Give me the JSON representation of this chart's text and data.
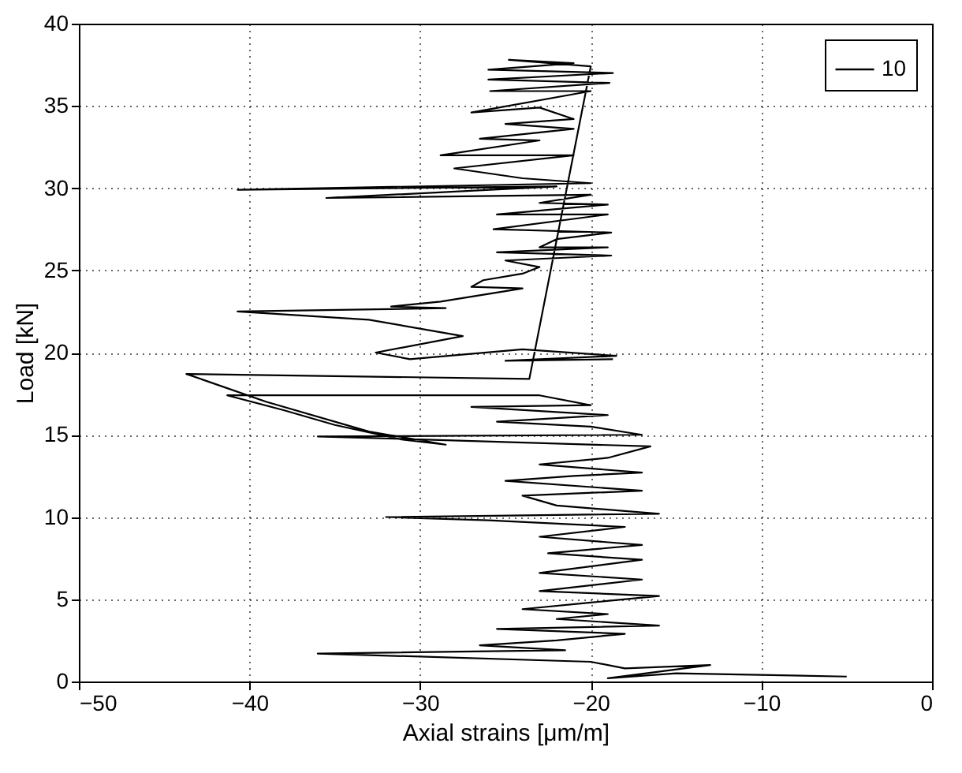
{
  "chart_data": {
    "type": "line",
    "xlabel": "Axial strains [μm/m]",
    "ylabel": "Load [kN]",
    "xlim": [
      -50,
      0
    ],
    "xticks": [
      -50,
      -40,
      -30,
      -20,
      -10,
      0
    ],
    "ylim": [
      0,
      40
    ],
    "yticks": [
      0,
      5,
      10,
      15,
      20,
      25,
      30,
      35,
      40
    ],
    "grid": true,
    "legend": "top right",
    "marker": "none",
    "line_style": "solid",
    "x": [
      -5.0,
      -15,
      -19,
      -13,
      -18,
      -20,
      -36,
      -21.5,
      -26.5,
      -22,
      -18,
      -25.5,
      -16,
      -22,
      -19,
      -24,
      -20,
      -16,
      -23,
      -17,
      -23,
      -17,
      -22.5,
      -17,
      -23,
      -18,
      -26,
      -32,
      -16,
      -22,
      -24,
      -17,
      -25,
      -21,
      -17,
      -23,
      -19,
      -16.5,
      -36,
      -17,
      -20,
      -25.5,
      -19,
      -27,
      -20,
      -23,
      -41.3,
      -38,
      -35,
      -31,
      -28.5,
      -33,
      -39,
      -43.7,
      -23.6,
      -20,
      -24.8,
      -21,
      -26,
      -18.7,
      -26,
      -18.9,
      -25.9,
      -20,
      -27,
      -23,
      -21,
      -25,
      -21,
      -26.5,
      -23,
      -28.8,
      -21,
      -28,
      -24,
      -20,
      -40.7,
      -22,
      -35.5,
      -20,
      -23,
      -19,
      -25.5,
      -19,
      -25.7,
      -18.8,
      -22,
      -23,
      -19,
      -25.5,
      -18.8,
      -25,
      -23,
      -24,
      -26.3,
      -27,
      -24,
      -28.8,
      -31.7,
      -28.5,
      -40.7,
      -33,
      -27.5,
      -32.6,
      -30.6,
      -24,
      -18.5,
      -25,
      -18.7
    ],
    "series": [
      {
        "name": "10",
        "color": "#000000",
        "values": [
          0.3,
          0.5,
          0.2,
          1.0,
          0.8,
          1.2,
          1.7,
          1.9,
          2.2,
          2.5,
          2.9,
          3.2,
          3.4,
          3.8,
          4.1,
          4.4,
          4.8,
          5.2,
          5.5,
          6.2,
          6.6,
          7.4,
          7.8,
          8.3,
          8.8,
          9.4,
          9.8,
          10.0,
          10.2,
          10.7,
          11.3,
          11.6,
          12.2,
          12.5,
          12.7,
          13.2,
          13.6,
          14.3,
          14.9,
          15.0,
          15.5,
          15.8,
          16.2,
          16.7,
          16.8,
          17.4,
          17.4,
          16.5,
          15.6,
          14.7,
          14.4,
          15.2,
          17.0,
          18.7,
          18.4,
          37.4,
          37.8,
          37.6,
          37.2,
          37.0,
          36.6,
          36.4,
          35.9,
          35.9,
          34.6,
          34.9,
          34.2,
          33.9,
          33.6,
          33.0,
          32.9,
          32.0,
          32.0,
          31.2,
          30.6,
          30.3,
          29.9,
          30.1,
          29.4,
          29.6,
          29.1,
          29.0,
          28.4,
          28.4,
          27.5,
          27.3,
          26.9,
          26.4,
          26.4,
          26.1,
          25.9,
          25.6,
          25.2,
          24.8,
          24.4,
          24.0,
          23.9,
          23.1,
          22.8,
          22.7,
          22.5,
          22.0,
          21.0,
          20.0,
          19.6,
          20.2,
          19.8,
          19.5,
          19.6
        ]
      }
    ]
  }
}
